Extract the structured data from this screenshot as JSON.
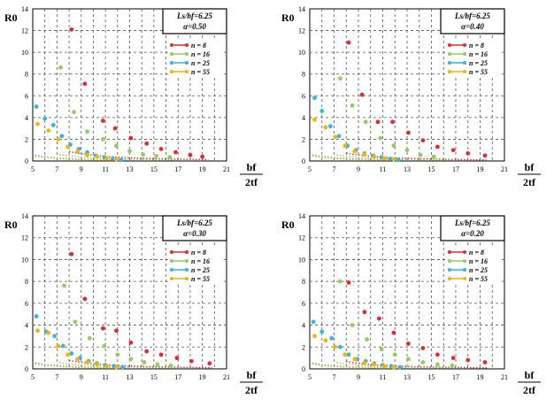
{
  "figure": {
    "description_panels": 4
  },
  "series_colors": {
    "n = 8": "#e8282b",
    "n = 16": "#8ed05a",
    "n = 25": "#2eb7e8",
    "n = 55": "#f4b400"
  },
  "chart_data": [
    {
      "type": "scatter",
      "box_line1": "Ls/bf=6.25",
      "box_line2": "α=0.50",
      "ylabel": "R0",
      "xlabel_top": "bf",
      "xlabel_bottom": "2tf",
      "xticks": [
        5,
        7,
        9,
        11,
        13,
        15,
        17,
        19,
        21
      ],
      "yticks": [
        0,
        2,
        4,
        6,
        8,
        10,
        12,
        14
      ],
      "xlim": [
        5,
        21
      ],
      "ylim": [
        0,
        14
      ],
      "grid": true,
      "legend": "upper-right",
      "series": [
        {
          "name": "n = 8",
          "color": "#e8282b",
          "x": [
            8.2,
            9.3,
            10.8,
            11.8,
            13.1,
            14.4,
            15.6,
            16.8,
            18.0,
            19.0
          ],
          "y": [
            12.1,
            7.1,
            3.7,
            3.0,
            2.1,
            1.6,
            1.1,
            0.8,
            0.55,
            0.4
          ],
          "trend_x": [
            8.0,
            19.5
          ],
          "trend_k": 84.5,
          "trend_b": 2.2
        },
        {
          "name": "n = 16",
          "color": "#8ed05a",
          "x": [
            7.3,
            8.4,
            9.5,
            10.8,
            11.9,
            13.0,
            14.1,
            15.2,
            16.3
          ],
          "y": [
            8.6,
            4.5,
            2.7,
            2.0,
            1.4,
            0.9,
            0.6,
            0.45,
            0.35
          ],
          "trend_x": [
            7.2,
            16.7
          ],
          "trend_k": 46,
          "trend_b": 2.2
        },
        {
          "name": "n = 25",
          "color": "#2eb7e8",
          "x": [
            5.3,
            6.0,
            6.7,
            7.4,
            8.1,
            8.8,
            9.5,
            10.2,
            10.9,
            11.6,
            12.3
          ],
          "y": [
            5.0,
            3.9,
            3.3,
            2.3,
            1.5,
            1.1,
            0.8,
            0.5,
            0.35,
            0.2,
            0.1
          ],
          "trend_x": [
            5.2,
            12.8
          ],
          "trend_k": 20.5,
          "trend_b": 2.2
        },
        {
          "name": "n = 55",
          "color": "#f4b400",
          "x": [
            5.4,
            6.3,
            7.1,
            7.9,
            8.7,
            9.5,
            10.3,
            11.1,
            11.9
          ],
          "y": [
            3.4,
            2.8,
            2.0,
            1.3,
            0.9,
            0.55,
            0.4,
            0.25,
            0.15
          ],
          "trend_x": [
            5.2,
            12.3
          ],
          "trend_k": 17,
          "trend_b": 2.2
        }
      ]
    },
    {
      "type": "scatter",
      "box_line1": "Ls/bf=6.25",
      "box_line2": "α=0.40",
      "ylabel": "R0",
      "xlabel_top": "bf",
      "xlabel_bottom": "2tf",
      "xticks": [
        5,
        7,
        9,
        11,
        13,
        15,
        17,
        19,
        21
      ],
      "yticks": [
        0,
        2,
        4,
        6,
        8,
        10,
        12,
        14
      ],
      "xlim": [
        5,
        21
      ],
      "ylim": [
        0,
        14
      ],
      "grid": true,
      "legend": "upper-right",
      "series": [
        {
          "name": "n = 8",
          "color": "#e8282b",
          "x": [
            8.2,
            9.3,
            10.6,
            11.8,
            13.1,
            14.3,
            15.5,
            16.8,
            18.0,
            19.4
          ],
          "y": [
            10.9,
            6.1,
            3.6,
            3.6,
            2.6,
            1.9,
            1.3,
            1.0,
            0.7,
            0.5
          ],
          "trend_x": [
            8.0,
            19.5
          ],
          "trend_k": 70,
          "trend_b": 2.2
        },
        {
          "name": "n = 16",
          "color": "#8ed05a",
          "x": [
            7.5,
            8.5,
            9.6,
            10.8,
            11.9,
            13.0,
            14.1,
            15.2
          ],
          "y": [
            7.6,
            5.1,
            3.6,
            2.1,
            1.4,
            1.0,
            0.55,
            0.4
          ],
          "trend_x": [
            7.2,
            16.7
          ],
          "trend_k": 43,
          "trend_b": 2.2
        },
        {
          "name": "n = 25",
          "color": "#2eb7e8",
          "x": [
            5.4,
            6.0,
            6.7,
            7.4,
            8.1,
            8.8,
            9.5,
            10.2,
            10.9,
            11.6,
            12.3
          ],
          "y": [
            5.8,
            4.6,
            3.2,
            2.3,
            1.4,
            1.0,
            0.7,
            0.5,
            0.35,
            0.2,
            0.1
          ],
          "trend_x": [
            5.2,
            12.8
          ],
          "trend_k": 22,
          "trend_b": 2.2
        },
        {
          "name": "n = 55",
          "color": "#f4b400",
          "x": [
            5.4,
            6.3,
            7.1,
            7.9,
            8.7,
            9.5,
            10.3,
            11.1,
            11.9
          ],
          "y": [
            3.8,
            3.1,
            2.2,
            1.4,
            0.9,
            0.6,
            0.4,
            0.25,
            0.15
          ],
          "trend_x": [
            5.2,
            12.3
          ],
          "trend_k": 17,
          "trend_b": 2.2
        }
      ]
    },
    {
      "type": "scatter",
      "box_line1": "Ls/bf=6.25",
      "box_line2": "α=0.30",
      "ylabel": "R0",
      "xlabel_top": "bf",
      "xlabel_bottom": "2tf",
      "xticks": [
        5,
        7,
        9,
        11,
        13,
        15,
        17,
        19,
        21
      ],
      "yticks": [
        0,
        2,
        4,
        6,
        8,
        10,
        12,
        14
      ],
      "xlim": [
        5,
        21
      ],
      "ylim": [
        0,
        14
      ],
      "grid": true,
      "legend": "upper-right",
      "series": [
        {
          "name": "n = 8",
          "color": "#e8282b",
          "x": [
            8.2,
            9.3,
            10.8,
            11.9,
            13.1,
            14.4,
            15.6,
            16.9,
            18.1,
            19.6
          ],
          "y": [
            10.5,
            6.4,
            3.7,
            3.5,
            2.4,
            1.6,
            1.3,
            1.0,
            0.7,
            0.5
          ],
          "trend_x": [
            8.0,
            19.8
          ],
          "trend_k": 75,
          "trend_b": 2.2
        },
        {
          "name": "n = 16",
          "color": "#8ed05a",
          "x": [
            7.6,
            8.5,
            9.7,
            10.9,
            12.0,
            13.1,
            14.2,
            15.3,
            16.4
          ],
          "y": [
            7.6,
            4.3,
            2.8,
            2.1,
            1.3,
            0.9,
            0.6,
            0.4,
            0.3
          ],
          "trend_x": [
            7.2,
            16.8
          ],
          "trend_k": 44,
          "trend_b": 2.2
        },
        {
          "name": "n = 25",
          "color": "#2eb7e8",
          "x": [
            5.3,
            6.1,
            6.8,
            7.5,
            8.2,
            8.9,
            9.6,
            10.3,
            11.0,
            11.7,
            12.4
          ],
          "y": [
            4.8,
            3.4,
            3.0,
            2.1,
            1.4,
            1.0,
            0.7,
            0.5,
            0.35,
            0.25,
            0.15
          ],
          "trend_x": [
            5.2,
            13.0
          ],
          "trend_k": 21,
          "trend_b": 2.2
        },
        {
          "name": "n = 55",
          "color": "#f4b400",
          "x": [
            5.4,
            6.3,
            7.1,
            7.9,
            8.7,
            9.5,
            10.3,
            11.1,
            11.9
          ],
          "y": [
            3.5,
            3.3,
            2.1,
            1.3,
            0.9,
            0.6,
            0.4,
            0.25,
            0.15
          ],
          "trend_x": [
            5.2,
            12.5
          ],
          "trend_k": 17,
          "trend_b": 2.2
        }
      ]
    },
    {
      "type": "scatter",
      "box_line1": "Ls/bf=6.25",
      "box_line2": "α=0.20",
      "ylabel": "R0",
      "xlabel_top": "bf",
      "xlabel_bottom": "2tf",
      "xticks": [
        5,
        7,
        9,
        11,
        13,
        15,
        17,
        19,
        21
      ],
      "yticks": [
        0,
        2,
        4,
        6,
        8,
        10,
        12,
        14
      ],
      "xlim": [
        5,
        21
      ],
      "ylim": [
        0,
        14
      ],
      "grid": true,
      "legend": "upper-right",
      "series": [
        {
          "name": "n = 8",
          "color": "#e8282b",
          "x": [
            8.2,
            9.5,
            10.7,
            11.9,
            13.1,
            14.3,
            15.5,
            16.8,
            18.0,
            19.4
          ],
          "y": [
            7.9,
            5.2,
            4.6,
            3.3,
            2.3,
            1.9,
            1.3,
            1.0,
            0.8,
            0.6
          ],
          "trend_x": [
            8.0,
            19.6
          ],
          "trend_k": 65,
          "trend_b": 2.2
        },
        {
          "name": "n = 16",
          "color": "#8ed05a",
          "x": [
            7.5,
            8.5,
            9.7,
            10.9,
            12.0,
            13.1,
            14.3,
            15.5,
            16.7
          ],
          "y": [
            8.0,
            4.0,
            2.7,
            1.8,
            1.3,
            0.9,
            0.6,
            0.4,
            0.3
          ],
          "trend_x": [
            7.2,
            16.8
          ],
          "trend_k": 44,
          "trend_b": 2.2
        },
        {
          "name": "n = 25",
          "color": "#2eb7e8",
          "x": [
            5.3,
            6.0,
            6.8,
            7.5,
            8.2,
            8.9,
            9.6,
            10.3,
            11.0,
            11.7,
            12.4
          ],
          "y": [
            4.3,
            3.4,
            2.8,
            2.0,
            1.3,
            0.9,
            0.7,
            0.5,
            0.35,
            0.25,
            0.15
          ],
          "trend_x": [
            5.2,
            13.0
          ],
          "trend_k": 20,
          "trend_b": 2.2
        },
        {
          "name": "n = 55",
          "color": "#f4b400",
          "x": [
            5.4,
            6.3,
            7.1,
            7.9,
            8.7,
            9.5,
            10.3,
            11.1,
            11.9
          ],
          "y": [
            3.0,
            2.6,
            2.0,
            1.3,
            0.9,
            0.55,
            0.4,
            0.25,
            0.15
          ],
          "trend_x": [
            5.2,
            12.5
          ],
          "trend_k": 16,
          "trend_b": 2.2
        }
      ]
    }
  ]
}
